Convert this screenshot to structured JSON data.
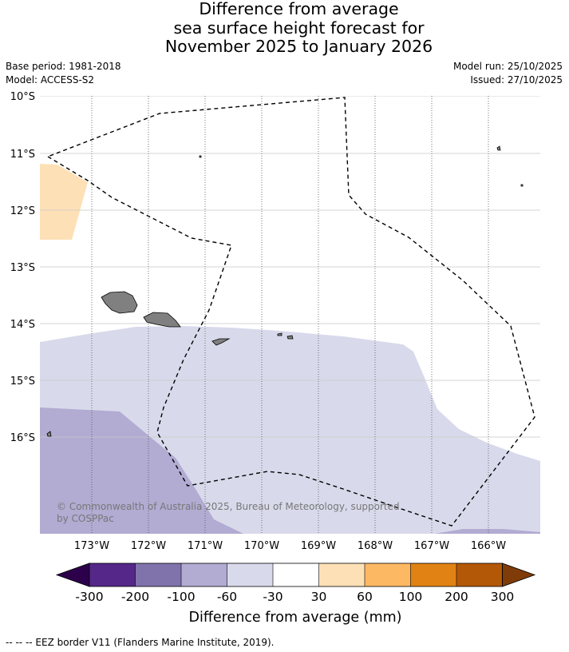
{
  "title": {
    "line1": "Difference from average",
    "line2": "sea surface height forecast for",
    "line3": "November 2025 to January 2026"
  },
  "meta": {
    "base_period": "Base period: 1981-2018",
    "model": "Model: ACCESS-S2",
    "model_run": "Model run: 25/10/2025",
    "issued": "Issued: 27/10/2025"
  },
  "map": {
    "lat_labels": [
      "10°S",
      "11°S",
      "12°S",
      "13°S",
      "14°S",
      "15°S",
      "16°S"
    ],
    "lon_labels": [
      "173°W",
      "172°W",
      "171°W",
      "170°W",
      "169°W",
      "168°W",
      "167°W",
      "166°W"
    ],
    "copyright_line1": "© Commonwealth of Australia 2025, Bureau of Meteorology, supported",
    "copyright_line2": "by COSPPac",
    "land_color": "#808080",
    "eez_border_color": "#000000"
  },
  "colorbar": {
    "title": "Difference from average (mm)",
    "tick_labels": [
      "-300",
      "-200",
      "-100",
      "-60",
      "-30",
      "30",
      "60",
      "100",
      "200",
      "300"
    ],
    "under_color": "#2d004b",
    "over_color": "#7f3b08",
    "colors": [
      "#542788",
      "#8073ac",
      "#b2abd2",
      "#d8daeb",
      "#ffffff",
      "#fee0b6",
      "#fdb863",
      "#e08214",
      "#b35806"
    ]
  },
  "footer": {
    "legend_line": "--  --  -- EEZ border V11 (Flanders Marine Institute, 2019)."
  }
}
